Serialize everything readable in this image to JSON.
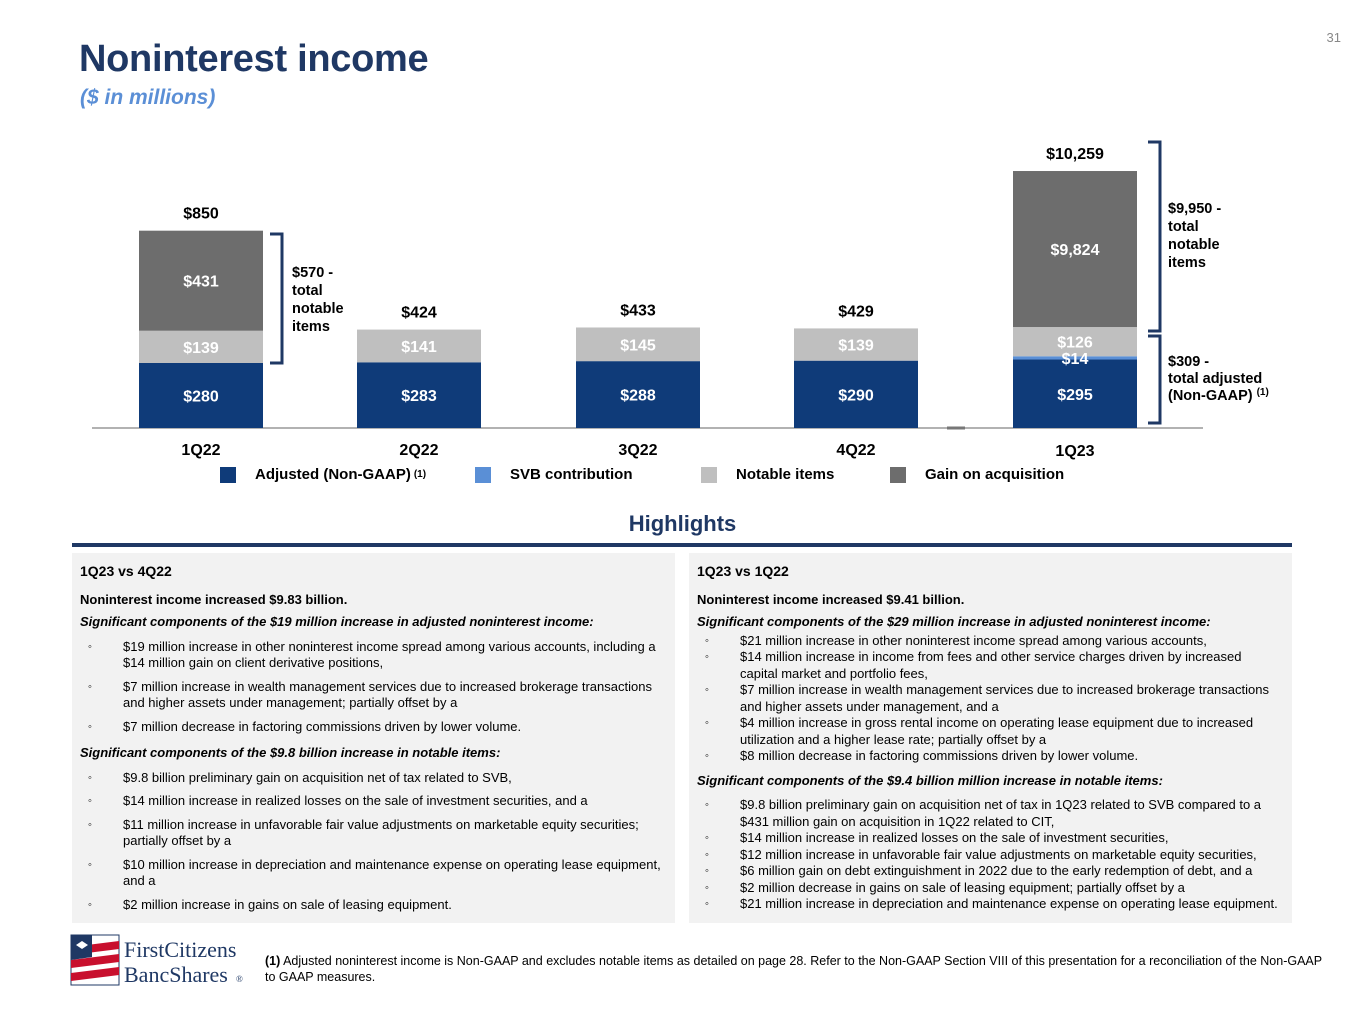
{
  "page_number": "31",
  "title": "Noninterest income",
  "subtitle": "($ in millions)",
  "colors": {
    "adjusted": "#0f3b79",
    "svb": "#5a8fd6",
    "notable": "#bfbfbf",
    "gain": "#6d6d6d",
    "title": "#1f3864",
    "subtitle": "#5b8fd6",
    "panel_bg": "#f2f2f2"
  },
  "chart_data": {
    "type": "bar",
    "stacked": true,
    "categories": [
      "1Q22",
      "2Q22",
      "3Q22",
      "4Q22",
      "1Q23"
    ],
    "series": [
      {
        "name": "Adjusted (Non-GAAP)",
        "values": [
          280,
          283,
          288,
          290,
          295
        ],
        "labels": [
          "$280",
          "$283",
          "$288",
          "$290",
          "$295"
        ]
      },
      {
        "name": "SVB contribution",
        "values": [
          0,
          0,
          0,
          0,
          14
        ],
        "labels": [
          "",
          "",
          "",
          "",
          "$14"
        ]
      },
      {
        "name": "Notable items",
        "values": [
          139,
          141,
          145,
          139,
          126
        ],
        "labels": [
          "$139",
          "$141",
          "$145",
          "$139",
          "$126"
        ]
      },
      {
        "name": "Gain on acquisition",
        "values": [
          431,
          0,
          0,
          0,
          9824
        ],
        "labels": [
          "$431",
          "",
          "",
          "",
          "$9,824"
        ]
      }
    ],
    "totals": [
      "$850",
      "$424",
      "$433",
      "$429",
      "$10,259"
    ],
    "axis_break": true,
    "annotations": [
      {
        "category": "1Q22",
        "lines": [
          "$570 -",
          "total",
          "notable",
          "items"
        ]
      },
      {
        "category": "1Q23",
        "lines": [
          "$9,950 -",
          "total",
          "notable",
          "items"
        ]
      },
      {
        "category": "1Q23",
        "lines": [
          "$309 -",
          "total adjusted",
          "(Non-GAAP)"
        ],
        "superscript": "(1)"
      }
    ]
  },
  "legend": {
    "items": [
      {
        "label": "Adjusted (Non-GAAP)",
        "sup": "(1)"
      },
      {
        "label": "SVB contribution",
        "sup": ""
      },
      {
        "label": "Notable items",
        "sup": ""
      },
      {
        "label": "Gain on acquisition",
        "sup": ""
      }
    ]
  },
  "highlights": {
    "title": "Highlights",
    "left": {
      "heading": "1Q23 vs 4Q22",
      "lead": "Noninterest income increased $9.83 billion.",
      "section1_title": "Significant components of the $19 million increase in adjusted noninterest income:",
      "section1_items": [
        "$19 million increase in other noninterest income spread among various accounts, including a $14 million gain on client derivative positions,",
        "$7 million increase in wealth management services due to increased brokerage transactions and higher assets under management; partially offset by a",
        "$7 million decrease in factoring commissions driven by lower volume."
      ],
      "section2_title": "Significant components of the $9.8 billion increase in notable items:",
      "section2_items": [
        "$9.8 billion preliminary gain on acquisition net of tax related to SVB,",
        "$14 million increase in realized losses on the sale of investment securities, and a",
        "$11 million increase in unfavorable fair value adjustments on marketable equity securities; partially offset by a",
        "$10 million increase in depreciation and maintenance expense on operating lease equipment, and a",
        "$2 million increase in gains on sale of leasing equipment."
      ]
    },
    "right": {
      "heading": "1Q23 vs 1Q22",
      "lead": "Noninterest income increased $9.41 billion.",
      "section1_title": "Significant components of the $29 million increase in adjusted noninterest income:",
      "section1_items": [
        "$21 million increase in other noninterest income spread among various accounts,",
        "$14 million increase in income from fees and other service charges driven by increased capital market and portfolio fees,",
        "$7 million increase in wealth management services due to increased brokerage transactions and higher assets under management, and a",
        "$4 million increase in gross rental income on operating lease equipment due to increased utilization and a higher lease rate; partially offset by a",
        "$8 million decrease in factoring commissions driven by lower volume."
      ],
      "section2_title": "Significant components of the $9.4 billion million increase in notable items:",
      "section2_items": [
        "$9.8 billion preliminary gain on acquisition net of tax in 1Q23 related to SVB compared to a $431 million gain on acquisition in 1Q22 related to CIT,",
        "$14 million increase in realized losses on the sale of investment securities,",
        "$12 million increase in unfavorable fair value adjustments on marketable equity securities,",
        "$6 million gain on debt extinguishment in 2022 due to the early redemption of debt, and a",
        "$2 million decrease in gains on sale of leasing equipment; partially offset by a",
        "$21 million increase in depreciation and maintenance expense on operating lease equipment."
      ]
    }
  },
  "logo": {
    "line1": "FirstCitizens",
    "line2": "BancShares",
    "mark": "®"
  },
  "footnote": {
    "marker": "(1)",
    "text": "Adjusted noninterest income is Non-GAAP and excludes notable items as detailed on page 28. Refer to the Non-GAAP Section VIII of this presentation for a reconciliation of the Non-GAAP to GAAP measures."
  }
}
